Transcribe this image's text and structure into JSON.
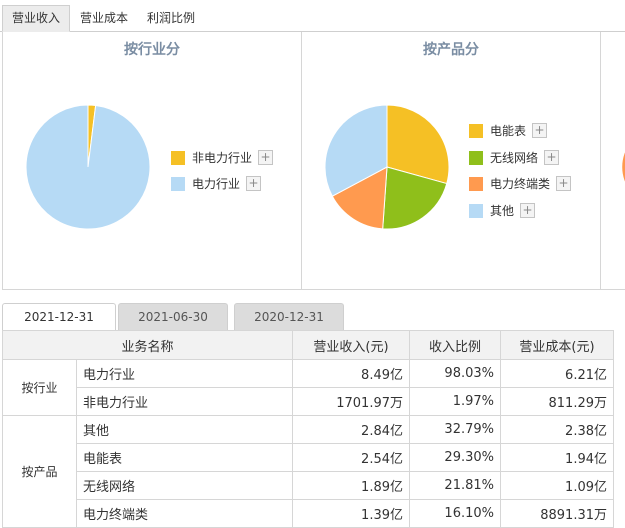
{
  "tabs": [
    "营业收入",
    "营业成本",
    "利润比例"
  ],
  "chart_data": [
    {
      "type": "pie",
      "title": "按行业分",
      "slices": [
        {
          "label": "非电力行业",
          "value": 1.97,
          "color": "#f5c025"
        },
        {
          "label": "电力行业",
          "value": 98.03,
          "color": "#b6daf5"
        }
      ]
    },
    {
      "type": "pie",
      "title": "按产品分",
      "slices": [
        {
          "label": "电能表",
          "value": 29.3,
          "color": "#f5c025"
        },
        {
          "label": "无线网络",
          "value": 21.81,
          "color": "#8fbf1b"
        },
        {
          "label": "电力终端类",
          "value": 16.1,
          "color": "#ff9a4f"
        },
        {
          "label": "其他",
          "value": 32.79,
          "color": "#b6daf5"
        }
      ]
    }
  ],
  "date_tabs": [
    "2021-12-31",
    "2021-06-30",
    "2020-12-31"
  ],
  "table": {
    "headers": [
      "业务名称",
      "营业收入(元)",
      "收入比例",
      "营业成本(元)"
    ],
    "groups": [
      {
        "name": "按行业",
        "rows": [
          {
            "name": "电力行业",
            "revenue": "8.49亿",
            "ratio": "98.03%",
            "cost": "6.21亿"
          },
          {
            "name": "非电力行业",
            "revenue": "1701.97万",
            "ratio": "1.97%",
            "cost": "811.29万"
          }
        ]
      },
      {
        "name": "按产品",
        "rows": [
          {
            "name": "其他",
            "revenue": "2.84亿",
            "ratio": "32.79%",
            "cost": "2.38亿"
          },
          {
            "name": "电能表",
            "revenue": "2.54亿",
            "ratio": "29.30%",
            "cost": "1.94亿"
          },
          {
            "name": "无线网络",
            "revenue": "1.89亿",
            "ratio": "21.81%",
            "cost": "1.09亿"
          },
          {
            "name": "电力终端类",
            "revenue": "1.39亿",
            "ratio": "16.10%",
            "cost": "8891.31万"
          }
        ]
      }
    ]
  }
}
